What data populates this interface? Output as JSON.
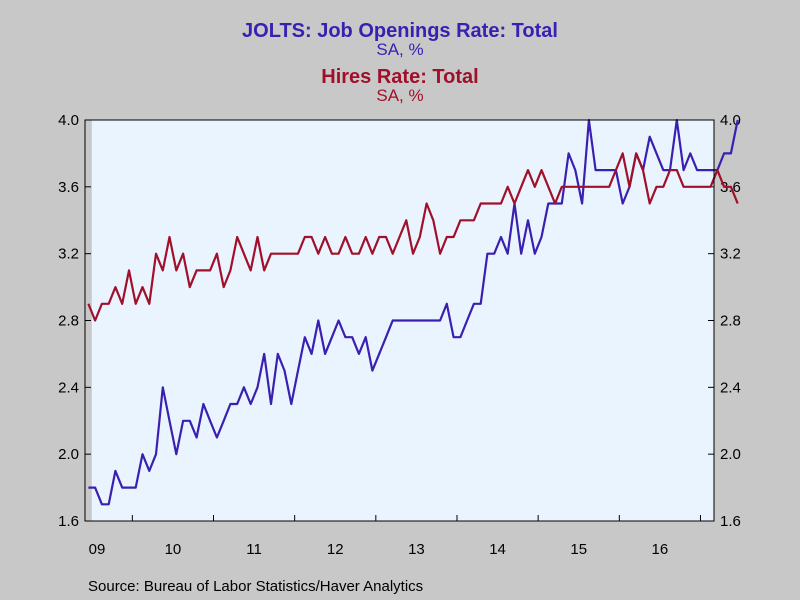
{
  "titles": [
    {
      "title": "JOLTS: Job Openings Rate: Total",
      "units": "SA, %",
      "color": "#3a20b0"
    },
    {
      "title": "Hires Rate: Total",
      "units": "SA, %",
      "color": "#a0102a"
    }
  ],
  "source": "Source:  Bureau of Labor Statistics/Haver Analytics",
  "chart_data": {
    "type": "line",
    "title": "JOLTS: Job Openings Rate: Total / Hires Rate: Total",
    "ylim": [
      1.6,
      4.0
    ],
    "y_ticks": [
      "1.6",
      "2.0",
      "2.4",
      "2.8",
      "3.2",
      "3.6",
      "4.0"
    ],
    "x_tick_labels": [
      "09",
      "10",
      "11",
      "12",
      "13",
      "14",
      "15",
      "16"
    ],
    "x_start": "2009-06",
    "x_end": "2017-02",
    "frequency": "monthly",
    "recession_shading": {
      "from": "2009-06",
      "to": "2009-06",
      "color": "#c8c8c8"
    },
    "plot_background": "#eaf4ff",
    "grid": false,
    "series": [
      {
        "name": "JOLTS: Job Openings Rate: Total",
        "color": "#3a20b0",
        "values": [
          1.8,
          1.8,
          1.7,
          1.7,
          1.9,
          1.8,
          1.8,
          1.8,
          2.0,
          1.9,
          2.0,
          2.4,
          2.2,
          2.0,
          2.2,
          2.2,
          2.1,
          2.3,
          2.2,
          2.1,
          2.2,
          2.3,
          2.3,
          2.4,
          2.3,
          2.4,
          2.6,
          2.3,
          2.6,
          2.5,
          2.3,
          2.5,
          2.7,
          2.6,
          2.8,
          2.6,
          2.7,
          2.8,
          2.7,
          2.7,
          2.6,
          2.7,
          2.5,
          2.6,
          2.7,
          2.8,
          2.8,
          2.8,
          2.8,
          2.8,
          2.8,
          2.8,
          2.8,
          2.9,
          2.7,
          2.7,
          2.8,
          2.9,
          2.9,
          3.2,
          3.2,
          3.3,
          3.2,
          3.5,
          3.2,
          3.4,
          3.2,
          3.3,
          3.5,
          3.5,
          3.5,
          3.8,
          3.7,
          3.5,
          4.0,
          3.7,
          3.7,
          3.7,
          3.7,
          3.5,
          3.6,
          3.8,
          3.7,
          3.9,
          3.8,
          3.7,
          3.7,
          4.0,
          3.7,
          3.8,
          3.7,
          3.7,
          3.7,
          3.7,
          3.8,
          3.8,
          4.0
        ]
      },
      {
        "name": "Hires Rate: Total",
        "color": "#a0102a",
        "values": [
          2.9,
          2.8,
          2.9,
          2.9,
          3.0,
          2.9,
          3.1,
          2.9,
          3.0,
          2.9,
          3.2,
          3.1,
          3.3,
          3.1,
          3.2,
          3.0,
          3.1,
          3.1,
          3.1,
          3.2,
          3.0,
          3.1,
          3.3,
          3.2,
          3.1,
          3.3,
          3.1,
          3.2,
          3.2,
          3.2,
          3.2,
          3.2,
          3.3,
          3.3,
          3.2,
          3.3,
          3.2,
          3.2,
          3.3,
          3.2,
          3.2,
          3.3,
          3.2,
          3.3,
          3.3,
          3.2,
          3.3,
          3.4,
          3.2,
          3.3,
          3.5,
          3.4,
          3.2,
          3.3,
          3.3,
          3.4,
          3.4,
          3.4,
          3.5,
          3.5,
          3.5,
          3.5,
          3.6,
          3.5,
          3.6,
          3.7,
          3.6,
          3.7,
          3.6,
          3.5,
          3.6,
          3.6,
          3.6,
          3.6,
          3.6,
          3.6,
          3.6,
          3.6,
          3.7,
          3.8,
          3.6,
          3.8,
          3.7,
          3.5,
          3.6,
          3.6,
          3.7,
          3.7,
          3.6,
          3.6,
          3.6,
          3.6,
          3.6,
          3.7,
          3.6,
          3.6,
          3.5
        ]
      }
    ]
  }
}
